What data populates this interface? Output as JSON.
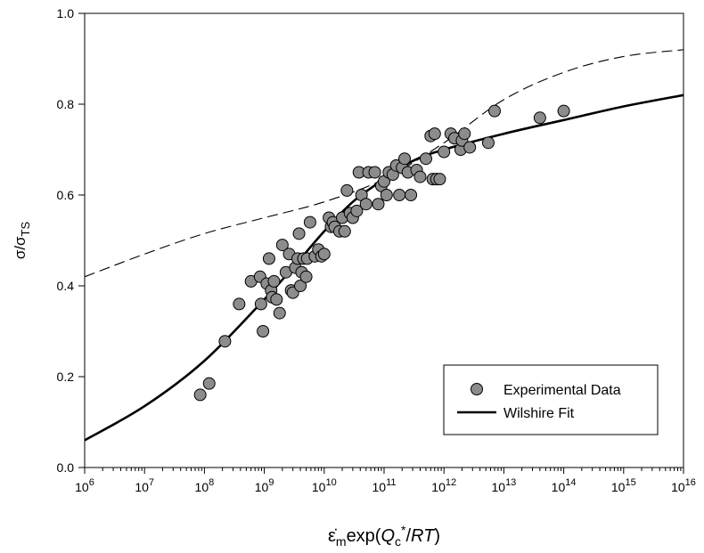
{
  "chart_data": {
    "type": "scatter",
    "xscale": "log",
    "xlim": [
      1000000.0,
      1e+16
    ],
    "ylim": [
      0,
      1.0
    ],
    "x_tick_exponents": [
      "6",
      "7",
      "8",
      "9",
      "10",
      "11",
      "12",
      "13",
      "14",
      "15",
      "16"
    ],
    "x_tick_base": "10",
    "y_ticks": [
      "0.0",
      "0.2",
      "0.4",
      "0.6",
      "0.8",
      "1.0"
    ],
    "xlabel": {
      "dot_eps": "ε̇",
      "sub_m": "m",
      "exp_open": "exp(",
      "Q": "Q",
      "sub_c": "c",
      "sup_star": "*",
      "slash": "/",
      "RT": "RT",
      "close": ")"
    },
    "ylabel": {
      "sigma": "σ/σ",
      "sub_TS": "TS"
    },
    "legend": {
      "placement": "bottom-right",
      "items": [
        {
          "label": "Experimental Data",
          "kind": "marker"
        },
        {
          "label": "Wilshire Fit",
          "kind": "line"
        }
      ]
    },
    "colors": {
      "marker_fill": "#8c8c8c",
      "marker_stroke": "#000000",
      "fit_line": "#000000",
      "dashed_line": "#000000"
    },
    "series": [
      {
        "name": "Experimental Data",
        "kind": "scatter",
        "points": [
          [
            85000000.0,
            0.16
          ],
          [
            120000000.0,
            0.185
          ],
          [
            220000000.0,
            0.278
          ],
          [
            380000000.0,
            0.36
          ],
          [
            600000000.0,
            0.41
          ],
          [
            850000000.0,
            0.42
          ],
          [
            950000000.0,
            0.3
          ],
          [
            880000000.0,
            0.36
          ],
          [
            1100000000.0,
            0.405
          ],
          [
            1200000000.0,
            0.46
          ],
          [
            1300000000.0,
            0.39
          ],
          [
            1350000000.0,
            0.375
          ],
          [
            1450000000.0,
            0.41
          ],
          [
            1600000000.0,
            0.37
          ],
          [
            1800000000.0,
            0.34
          ],
          [
            2000000000.0,
            0.49
          ],
          [
            2300000000.0,
            0.43
          ],
          [
            2600000000.0,
            0.47
          ],
          [
            2800000000.0,
            0.39
          ],
          [
            3000000000.0,
            0.385
          ],
          [
            3300000000.0,
            0.44
          ],
          [
            3600000000.0,
            0.46
          ],
          [
            3800000000.0,
            0.515
          ],
          [
            4000000000.0,
            0.4
          ],
          [
            4200000000.0,
            0.43
          ],
          [
            4500000000.0,
            0.46
          ],
          [
            5000000000.0,
            0.42
          ],
          [
            5200000000.0,
            0.46
          ],
          [
            5800000000.0,
            0.54
          ],
          [
            7000000000.0,
            0.465
          ],
          [
            8000000000.0,
            0.48
          ],
          [
            9000000000.0,
            0.465
          ],
          [
            10000000000.0,
            0.47
          ],
          [
            12000000000.0,
            0.55
          ],
          [
            13000000000.0,
            0.53
          ],
          [
            14000000000.0,
            0.54
          ],
          [
            15000000000.0,
            0.53
          ],
          [
            18000000000.0,
            0.52
          ],
          [
            20000000000.0,
            0.55
          ],
          [
            22000000000.0,
            0.52
          ],
          [
            24000000000.0,
            0.61
          ],
          [
            27000000000.0,
            0.56
          ],
          [
            30000000000.0,
            0.55
          ],
          [
            35000000000.0,
            0.565
          ],
          [
            38000000000.0,
            0.65
          ],
          [
            42000000000.0,
            0.6
          ],
          [
            50000000000.0,
            0.58
          ],
          [
            55000000000.0,
            0.65
          ],
          [
            70000000000.0,
            0.65
          ],
          [
            80000000000.0,
            0.58
          ],
          [
            90000000000.0,
            0.62
          ],
          [
            100000000000.0,
            0.63
          ],
          [
            110000000000.0,
            0.6
          ],
          [
            120000000000.0,
            0.65
          ],
          [
            140000000000.0,
            0.645
          ],
          [
            160000000000.0,
            0.665
          ],
          [
            180000000000.0,
            0.6
          ],
          [
            200000000000.0,
            0.66
          ],
          [
            220000000000.0,
            0.68
          ],
          [
            250000000000.0,
            0.65
          ],
          [
            280000000000.0,
            0.6
          ],
          [
            350000000000.0,
            0.655
          ],
          [
            400000000000.0,
            0.64
          ],
          [
            500000000000.0,
            0.68
          ],
          [
            600000000000.0,
            0.73
          ],
          [
            650000000000.0,
            0.635
          ],
          [
            700000000000.0,
            0.735
          ],
          [
            750000000000.0,
            0.635
          ],
          [
            850000000000.0,
            0.635
          ],
          [
            1000000000000.0,
            0.695
          ],
          [
            1300000000000.0,
            0.735
          ],
          [
            1500000000000.0,
            0.725
          ],
          [
            1900000000000.0,
            0.7
          ],
          [
            2000000000000.0,
            0.72
          ],
          [
            2200000000000.0,
            0.735
          ],
          [
            2700000000000.0,
            0.705
          ],
          [
            5500000000000.0,
            0.715
          ],
          [
            7000000000000.0,
            0.785
          ],
          [
            40000000000000.0,
            0.77
          ],
          [
            100000000000000.0,
            0.785
          ]
        ]
      },
      {
        "name": "Wilshire Fit",
        "kind": "line",
        "points": [
          [
            1000000.0,
            0.06
          ],
          [
            10000000.0,
            0.135
          ],
          [
            100000000.0,
            0.235
          ],
          [
            1000000000.0,
            0.37
          ],
          [
            3000000000.0,
            0.44
          ],
          [
            10000000000.0,
            0.52
          ],
          [
            30000000000.0,
            0.585
          ],
          [
            100000000000.0,
            0.635
          ],
          [
            300000000000.0,
            0.675
          ],
          [
            1000000000000.0,
            0.7
          ],
          [
            10000000000000.0,
            0.735
          ],
          [
            100000000000000.0,
            0.765
          ],
          [
            1000000000000000.0,
            0.795
          ],
          [
            1e+16,
            0.82
          ]
        ]
      },
      {
        "kind": "dashed",
        "points": [
          [
            1000000.0,
            0.42
          ],
          [
            10000000.0,
            0.47
          ],
          [
            100000000.0,
            0.515
          ],
          [
            1000000000.0,
            0.55
          ],
          [
            10000000000.0,
            0.585
          ],
          [
            100000000000.0,
            0.635
          ],
          [
            1000000000000.0,
            0.715
          ],
          [
            10000000000000.0,
            0.81
          ],
          [
            100000000000000.0,
            0.87
          ],
          [
            1000000000000000.0,
            0.905
          ],
          [
            1e+16,
            0.92
          ]
        ]
      }
    ]
  }
}
